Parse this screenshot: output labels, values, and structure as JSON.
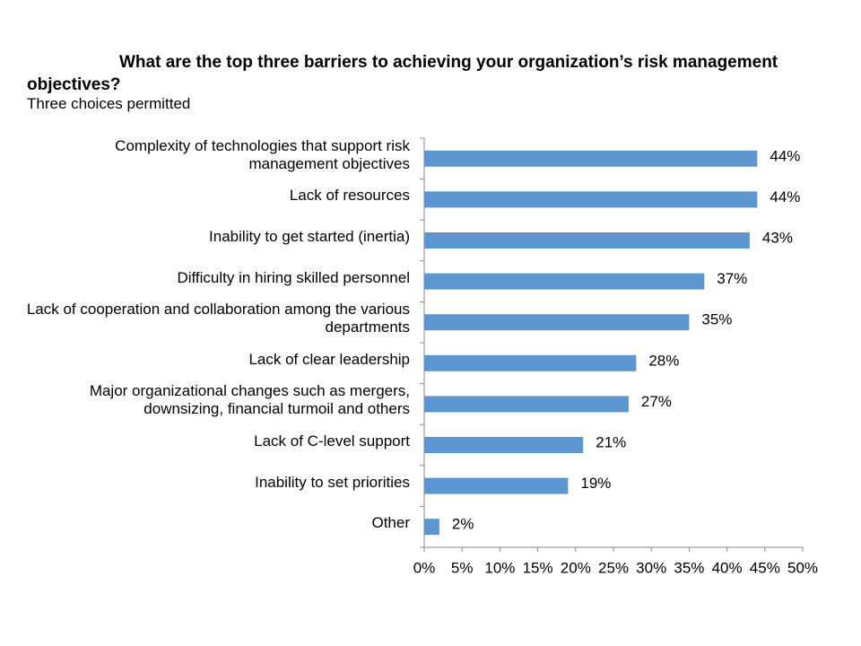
{
  "chart_data": {
    "type": "barh",
    "title": "What are the top three barriers to achieving your organization’s risk management objectives?",
    "subtitle": "Three choices permitted",
    "categories": [
      "Complexity of technologies that support risk management objectives",
      "Lack of resources",
      "Inability to get started (inertia)",
      "Difficulty in hiring skilled personnel",
      "Lack of cooperation and collaboration among the various departments",
      "Lack of clear leadership",
      "Major organizational changes such as mergers, downsizing, financial turmoil and others",
      "Lack of C-level support",
      "Inability to set priorities",
      "Other"
    ],
    "values": [
      44,
      44,
      43,
      37,
      35,
      28,
      27,
      21,
      19,
      2
    ],
    "value_labels": [
      "44%",
      "44%",
      "43%",
      "37%",
      "35%",
      "28%",
      "27%",
      "21%",
      "19%",
      "2%"
    ],
    "color": "#5b96d0",
    "xlim": [
      0,
      50
    ],
    "xticks": [
      {
        "value": 0,
        "label": "0%"
      },
      {
        "value": 5,
        "label": "5%"
      },
      {
        "value": 10,
        "label": "10%"
      },
      {
        "value": 15,
        "label": "15%"
      },
      {
        "value": 20,
        "label": "20%"
      },
      {
        "value": 25,
        "label": "25%"
      },
      {
        "value": 30,
        "label": "30%"
      },
      {
        "value": 35,
        "label": "35%"
      },
      {
        "value": 40,
        "label": "40%"
      },
      {
        "value": 45,
        "label": "45%"
      },
      {
        "value": 50,
        "label": "50%"
      }
    ],
    "grid": false
  }
}
